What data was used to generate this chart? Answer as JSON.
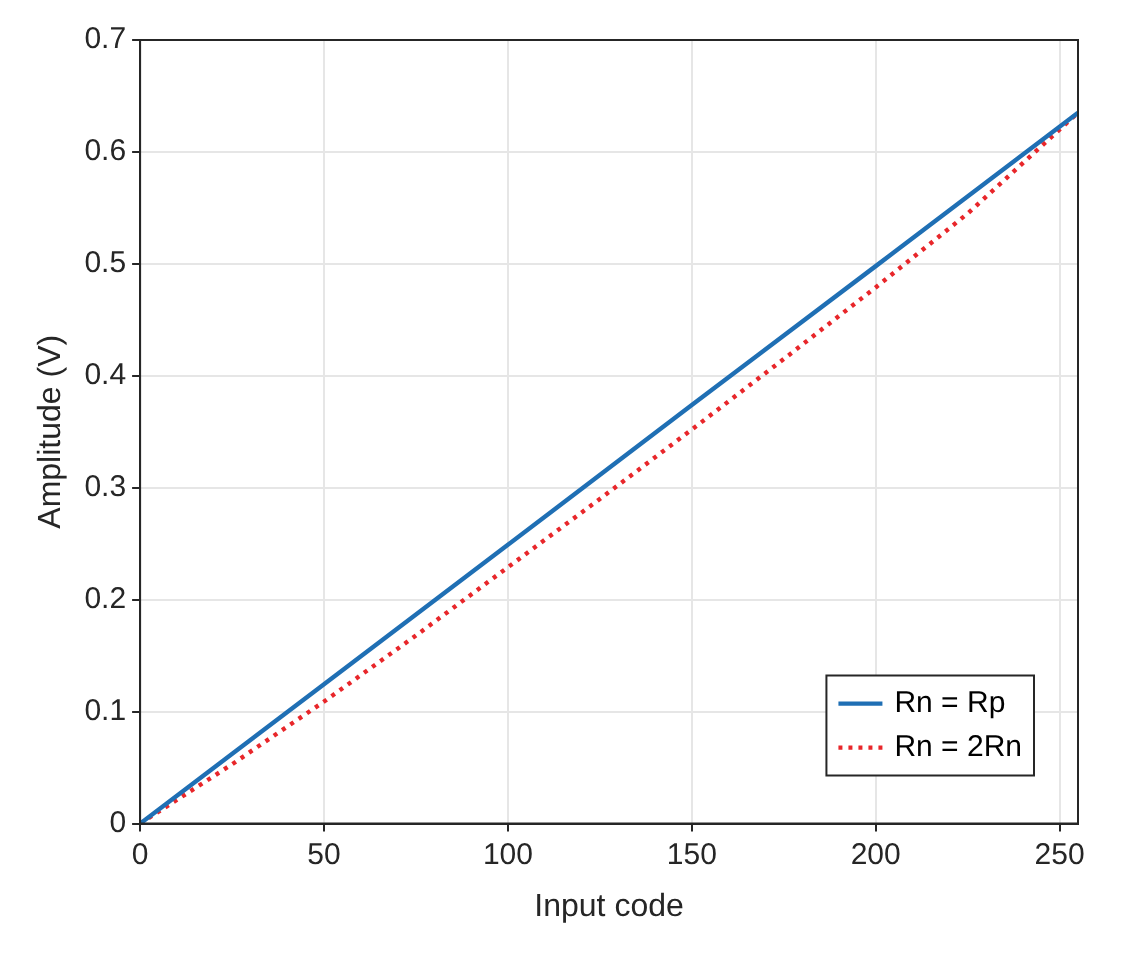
{
  "chart_data": {
    "type": "line",
    "xlabel": "Input code",
    "ylabel": "Amplitude (V)",
    "xlim": [
      0,
      255
    ],
    "xticks": [
      0,
      50,
      100,
      150,
      200,
      250
    ],
    "ylim": [
      0,
      0.7
    ],
    "yticks": [
      0,
      0.1,
      0.2,
      0.3,
      0.4,
      0.5,
      0.6,
      0.7
    ],
    "grid": true,
    "legend": "bottom right",
    "marker": "none",
    "series": [
      {
        "name": "Rn = Rp",
        "color": "#1f6fb4",
        "line_style": "solid",
        "x": [
          0,
          50,
          100,
          150,
          200,
          255
        ],
        "values": [
          0,
          0.1245,
          0.249,
          0.374,
          0.498,
          0.635
        ]
      },
      {
        "name": "Rn = 2Rn",
        "color": "#e8262a",
        "line_style": "dotted",
        "x": [
          0,
          25,
          50,
          75,
          100,
          125,
          150,
          175,
          200,
          225,
          255
        ],
        "values": [
          0,
          0.053,
          0.109,
          0.168,
          0.229,
          0.29,
          0.352,
          0.415,
          0.479,
          0.545,
          0.635
        ]
      }
    ]
  }
}
